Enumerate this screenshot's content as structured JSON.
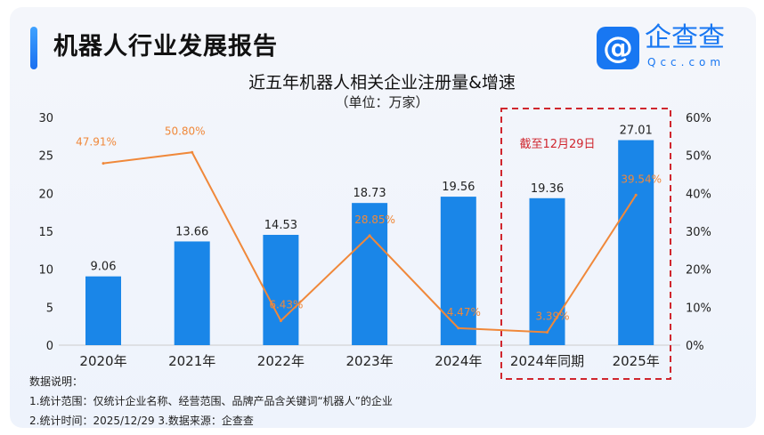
{
  "header": {
    "title": "机器人行业发展报告",
    "logo_text": "企查查",
    "logo_sub": "Qcc.com"
  },
  "chart_data": {
    "type": "bar+line",
    "title": "近五年机器人相关企业注册量&增速",
    "subtitle": "（单位：万家）",
    "categories": [
      "2020年",
      "2021年",
      "2022年",
      "2023年",
      "2024年",
      "2024年同期",
      "2025年"
    ],
    "series": [
      {
        "type": "bar",
        "values": [
          9.06,
          13.66,
          14.53,
          18.73,
          19.56,
          19.36,
          27.01
        ],
        "labels": [
          "9.06",
          "13.66",
          "14.53",
          "18.73",
          "19.56",
          "19.36",
          "27.01"
        ],
        "color": "#1a86e8"
      },
      {
        "type": "line",
        "values": [
          47.91,
          50.8,
          6.43,
          28.85,
          4.47,
          3.39,
          39.54
        ],
        "labels": [
          "47.91%",
          "50.80%",
          "6.43%",
          "28.85%",
          "4.47%",
          "3.39%",
          "39.54%"
        ],
        "color": "#f0883a"
      }
    ],
    "y_left": {
      "range": [
        0,
        30
      ],
      "ticks": [
        "0",
        "5",
        "10",
        "15",
        "20",
        "25",
        "30"
      ]
    },
    "y_right": {
      "range": [
        0,
        60
      ],
      "ticks": [
        "0%",
        "10%",
        "20%",
        "30%",
        "40%",
        "50%",
        "60%"
      ]
    },
    "highlight_annotation": "截至12月29日",
    "highlight_color": "#d0262e",
    "grid": false
  },
  "notes": [
    "数据说明：",
    "1.统计范围：仅统计企业名称、经营范围、品牌产品含关键词“机器人”的企业",
    "2.统计时间：2025/12/29  3.数据来源：企查查"
  ]
}
